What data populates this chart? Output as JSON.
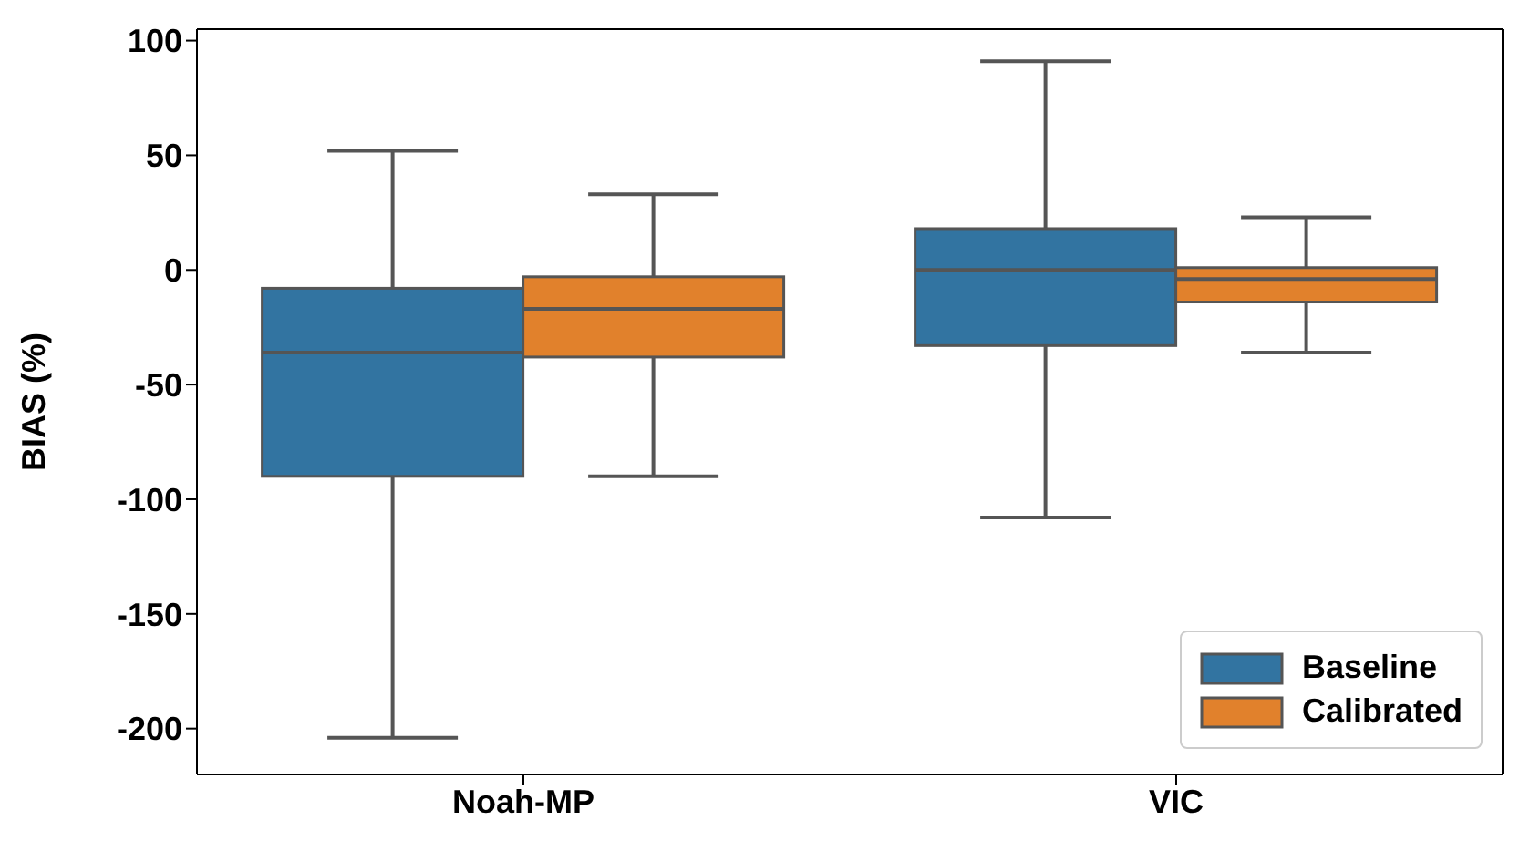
{
  "chart_data": {
    "type": "box",
    "ylabel": "BIAS (%)",
    "categories": [
      "Noah-MP",
      "VIC"
    ],
    "series": [
      {
        "name": "Baseline",
        "color": "#3274a1",
        "boxes": [
          {
            "low": -204,
            "q1": -90,
            "median": -36,
            "q3": -8,
            "high": 52
          },
          {
            "low": -108,
            "q1": -33,
            "median": 0,
            "q3": 18,
            "high": 91
          }
        ]
      },
      {
        "name": "Calibrated",
        "color": "#e1812c",
        "boxes": [
          {
            "low": -90,
            "q1": -38,
            "median": -17,
            "q3": -3,
            "high": 33
          },
          {
            "low": -36,
            "q1": -14,
            "median": -4,
            "q3": 1,
            "high": 23
          }
        ]
      }
    ],
    "ylim": [
      -220,
      105
    ],
    "yticks": [
      -200,
      -150,
      -100,
      -50,
      0,
      50,
      100
    ],
    "grid": false,
    "legend": "bottom right"
  }
}
